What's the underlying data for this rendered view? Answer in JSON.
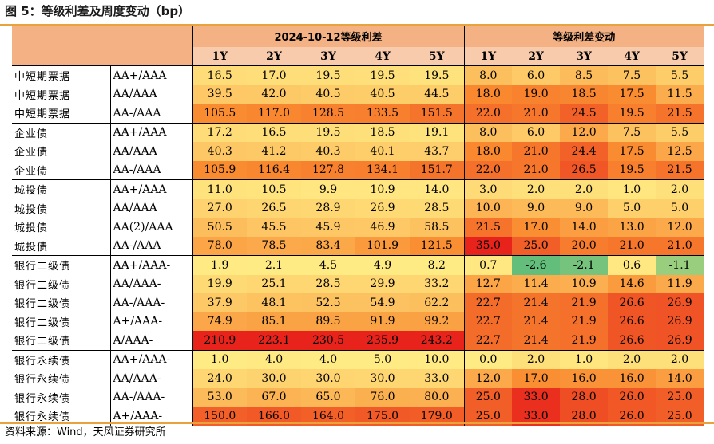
{
  "title": "图 5：等级利差及周度变动（bp）",
  "source": "资料来源：Wind，天风证券研究所",
  "headers": {
    "spread_group": "2024-10-12等级利差",
    "change_group": "等级利差变动",
    "tenors": [
      "1Y",
      "2Y",
      "3Y",
      "4Y",
      "5Y"
    ]
  },
  "rows": [
    {
      "label": "中短期票据",
      "rating": "AA+/AAA",
      "spread": [
        "16.5",
        "17.0",
        "19.5",
        "19.5",
        "19.5"
      ],
      "change": [
        "8.0",
        "6.0",
        "8.5",
        "7.5",
        "5.5"
      ]
    },
    {
      "label": "中短期票据",
      "rating": "AA/AAA",
      "spread": [
        "39.5",
        "42.0",
        "40.5",
        "40.5",
        "44.5"
      ],
      "change": [
        "18.0",
        "19.0",
        "18.5",
        "17.5",
        "11.5"
      ]
    },
    {
      "label": "中短期票据",
      "rating": "AA-/AAA",
      "spread": [
        "105.5",
        "117.0",
        "128.5",
        "133.5",
        "151.5"
      ],
      "change": [
        "22.0",
        "21.0",
        "24.5",
        "19.5",
        "21.5"
      ]
    },
    {
      "label": "企业债",
      "rating": "AA+/AAA",
      "spread": [
        "17.2",
        "16.5",
        "19.5",
        "18.5",
        "19.1"
      ],
      "change": [
        "8.0",
        "6.0",
        "12.0",
        "7.5",
        "5.5"
      ]
    },
    {
      "label": "企业债",
      "rating": "AA/AAA",
      "spread": [
        "40.3",
        "41.2",
        "40.3",
        "40.1",
        "43.7"
      ],
      "change": [
        "18.0",
        "21.0",
        "24.4",
        "17.5",
        "12.5"
      ]
    },
    {
      "label": "企业债",
      "rating": "AA-/AAA",
      "spread": [
        "105.9",
        "116.4",
        "127.8",
        "134.1",
        "151.7"
      ],
      "change": [
        "22.0",
        "21.0",
        "26.5",
        "19.5",
        "21.5"
      ]
    },
    {
      "label": "城投债",
      "rating": "AA+/AAA",
      "spread": [
        "11.0",
        "10.5",
        "9.9",
        "10.9",
        "14.0"
      ],
      "change": [
        "3.0",
        "2.0",
        "2.0",
        "1.0",
        "2.0"
      ]
    },
    {
      "label": "城投债",
      "rating": "AA/AAA",
      "spread": [
        "27.0",
        "26.5",
        "28.9",
        "26.9",
        "28.5"
      ],
      "change": [
        "10.0",
        "9.0",
        "9.0",
        "5.0",
        "5.0"
      ]
    },
    {
      "label": "城投债",
      "rating": "AA(2)/AAA",
      "spread": [
        "50.5",
        "45.5",
        "45.9",
        "46.9",
        "58.5"
      ],
      "change": [
        "21.5",
        "17.0",
        "14.0",
        "13.0",
        "12.0"
      ]
    },
    {
      "label": "城投债",
      "rating": "AA-/AAA",
      "spread": [
        "78.0",
        "78.5",
        "83.4",
        "101.9",
        "121.5"
      ],
      "change": [
        "35.0",
        "25.0",
        "20.0",
        "21.0",
        "21.0"
      ]
    },
    {
      "label": "银行二级债",
      "rating": "AA+/AAA-",
      "spread": [
        "1.9",
        "2.1",
        "4.5",
        "4.9",
        "8.2"
      ],
      "change": [
        "0.7",
        "-2.6",
        "-2.1",
        "0.6",
        "-1.1"
      ]
    },
    {
      "label": "银行二级债",
      "rating": "AA/AAA-",
      "spread": [
        "19.9",
        "25.1",
        "28.5",
        "29.9",
        "33.2"
      ],
      "change": [
        "12.7",
        "11.4",
        "10.9",
        "14.6",
        "11.9"
      ]
    },
    {
      "label": "银行二级债",
      "rating": "AA-/AAA-",
      "spread": [
        "37.9",
        "48.1",
        "52.5",
        "54.9",
        "62.2"
      ],
      "change": [
        "22.7",
        "21.4",
        "21.9",
        "26.6",
        "26.9"
      ]
    },
    {
      "label": "银行二级债",
      "rating": "A+/AAA-",
      "spread": [
        "74.9",
        "85.1",
        "89.5",
        "91.9",
        "99.2"
      ],
      "change": [
        "22.7",
        "21.4",
        "21.9",
        "26.6",
        "26.9"
      ]
    },
    {
      "label": "银行二级债",
      "rating": "A/AAA-",
      "spread": [
        "210.9",
        "223.1",
        "230.5",
        "235.9",
        "243.2"
      ],
      "change": [
        "22.7",
        "21.4",
        "21.9",
        "26.6",
        "26.9"
      ]
    },
    {
      "label": "银行永续债",
      "rating": "AA+/AAA-",
      "spread": [
        "1.0",
        "4.0",
        "4.0",
        "5.0",
        "10.0"
      ],
      "change": [
        "0.0",
        "2.0",
        "1.0",
        "2.0",
        "2.0"
      ]
    },
    {
      "label": "银行永续债",
      "rating": "AA/AAA-",
      "spread": [
        "24.0",
        "30.0",
        "30.0",
        "30.0",
        "33.0"
      ],
      "change": [
        "12.0",
        "17.0",
        "16.0",
        "16.0",
        "14.0"
      ]
    },
    {
      "label": "银行永续债",
      "rating": "AA-/AAA-",
      "spread": [
        "53.0",
        "67.0",
        "65.0",
        "76.0",
        "80.0"
      ],
      "change": [
        "25.0",
        "33.0",
        "28.0",
        "26.0",
        "25.0"
      ]
    },
    {
      "label": "银行永续债",
      "rating": "A+/AAA-",
      "spread": [
        "150.0",
        "166.0",
        "164.0",
        "175.0",
        "179.0"
      ],
      "change": [
        "25.0",
        "33.0",
        "28.0",
        "26.0",
        "25.0"
      ]
    }
  ],
  "group_start_rows": [
    0,
    3,
    6,
    10,
    15
  ],
  "colors": {
    "header": "#f4b183",
    "subheader": "#f8cbad",
    "scale_low": "#ffeb84",
    "scale_mid": "#f98b30",
    "scale_high": "#e8231c",
    "scale_neg_strong": "#63be7b"
  }
}
